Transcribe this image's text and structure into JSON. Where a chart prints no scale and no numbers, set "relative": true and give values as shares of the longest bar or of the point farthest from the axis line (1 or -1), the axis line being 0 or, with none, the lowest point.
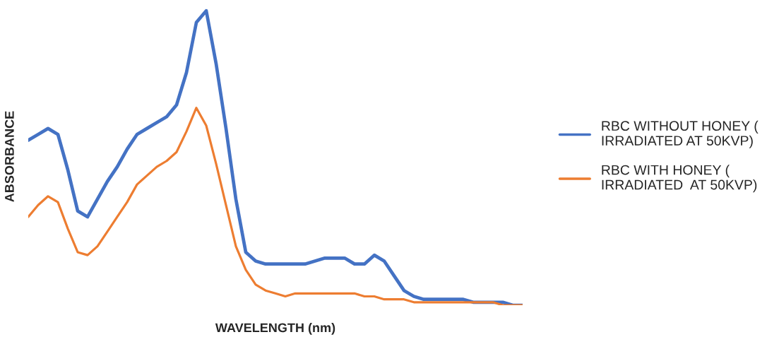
{
  "chart_data": {
    "type": "line",
    "relative": true,
    "xlabel": "WAVELENGTH (nm)",
    "ylabel": "ABSORBANCE",
    "categories": [
      null,
      null,
      null,
      null,
      null,
      null,
      null,
      null,
      null,
      null,
      null,
      null,
      null,
      null,
      null,
      null,
      null,
      null,
      null,
      null,
      null,
      null,
      null,
      null,
      null,
      null,
      null,
      null,
      null,
      null,
      null,
      null,
      null,
      null,
      null,
      null,
      null,
      null,
      null,
      null,
      null,
      null,
      null,
      null,
      null,
      null,
      null,
      null,
      null,
      null,
      null
    ],
    "series": [
      {
        "name": "RBC WITHOUT HONEY (\nIRRADIATED AT 50KVP)",
        "color": "#4472c4",
        "values": [
          0.56,
          0.58,
          0.6,
          0.58,
          0.46,
          0.32,
          0.3,
          0.36,
          0.42,
          0.47,
          0.53,
          0.58,
          0.6,
          0.62,
          0.64,
          0.68,
          0.79,
          0.96,
          1,
          0.82,
          0.6,
          0.36,
          0.18,
          0.15,
          0.14,
          0.14,
          0.14,
          0.14,
          0.14,
          0.15,
          0.16,
          0.16,
          0.16,
          0.14,
          0.14,
          0.17,
          0.15,
          0.1,
          0.05,
          0.03,
          0.02,
          0.02,
          0.02,
          0.02,
          0.02,
          0.01,
          0.01,
          0.01,
          0.01,
          0,
          0
        ]
      },
      {
        "name": "RBC WITH HONEY (\nIRRADIATED  AT 50KVP)",
        "color": "#ed7d31",
        "values": [
          0.3,
          0.34,
          0.37,
          0.35,
          0.26,
          0.18,
          0.17,
          0.2,
          0.25,
          0.3,
          0.35,
          0.41,
          0.44,
          0.47,
          0.49,
          0.52,
          0.59,
          0.67,
          0.61,
          0.48,
          0.34,
          0.2,
          0.12,
          0.07,
          0.05,
          0.04,
          0.03,
          0.04,
          0.04,
          0.04,
          0.04,
          0.04,
          0.04,
          0.04,
          0.03,
          0.03,
          0.02,
          0.02,
          0.02,
          0.01,
          0.01,
          0.01,
          0.01,
          0.01,
          0.01,
          0.01,
          0.01,
          0.01,
          0,
          0,
          0
        ]
      }
    ],
    "legend": "right",
    "marker": "none",
    "line_style": "solid"
  }
}
